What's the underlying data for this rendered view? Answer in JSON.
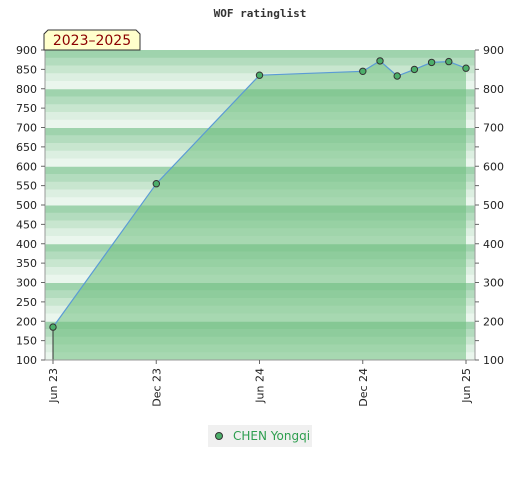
{
  "chart_data": {
    "type": "area",
    "title": "WOF ratinglist",
    "badge": "2023–2025",
    "ylim": [
      100,
      900
    ],
    "y_ticks": [
      100,
      150,
      200,
      250,
      300,
      350,
      400,
      450,
      500,
      550,
      600,
      650,
      700,
      750,
      800,
      850,
      900
    ],
    "y_ticks_right": [
      100,
      200,
      300,
      400,
      500,
      600,
      700,
      800,
      900
    ],
    "x_range": [
      "2023-06",
      "2025-06"
    ],
    "x_ticks": [
      {
        "label": "Jun 23",
        "date": "2023-06"
      },
      {
        "label": "Dec 23",
        "date": "2023-12"
      },
      {
        "label": "Jun 24",
        "date": "2024-06"
      },
      {
        "label": "Dec 24",
        "date": "2024-12"
      },
      {
        "label": "Jun 25",
        "date": "2025-06"
      }
    ],
    "series": [
      {
        "name": "CHEN Yongqi",
        "points": [
          {
            "x": "2023-06",
            "y": 185
          },
          {
            "x": "2023-12",
            "y": 555
          },
          {
            "x": "2024-06",
            "y": 835
          },
          {
            "x": "2024-12",
            "y": 845
          },
          {
            "x": "2025-01",
            "y": 872
          },
          {
            "x": "2025-02",
            "y": 833
          },
          {
            "x": "2025-03",
            "y": 850
          },
          {
            "x": "2025-04",
            "y": 868
          },
          {
            "x": "2025-05",
            "y": 870
          },
          {
            "x": "2025-06",
            "y": 853
          }
        ]
      }
    ],
    "legend_position": "bottom-center",
    "grid": true,
    "colors": {
      "area": "#6fbf7f",
      "line": "#5b9bd5",
      "marker": "#4caf6a",
      "band_dark": "#9fd3ad",
      "band_light": "#eaf6ed"
    }
  }
}
